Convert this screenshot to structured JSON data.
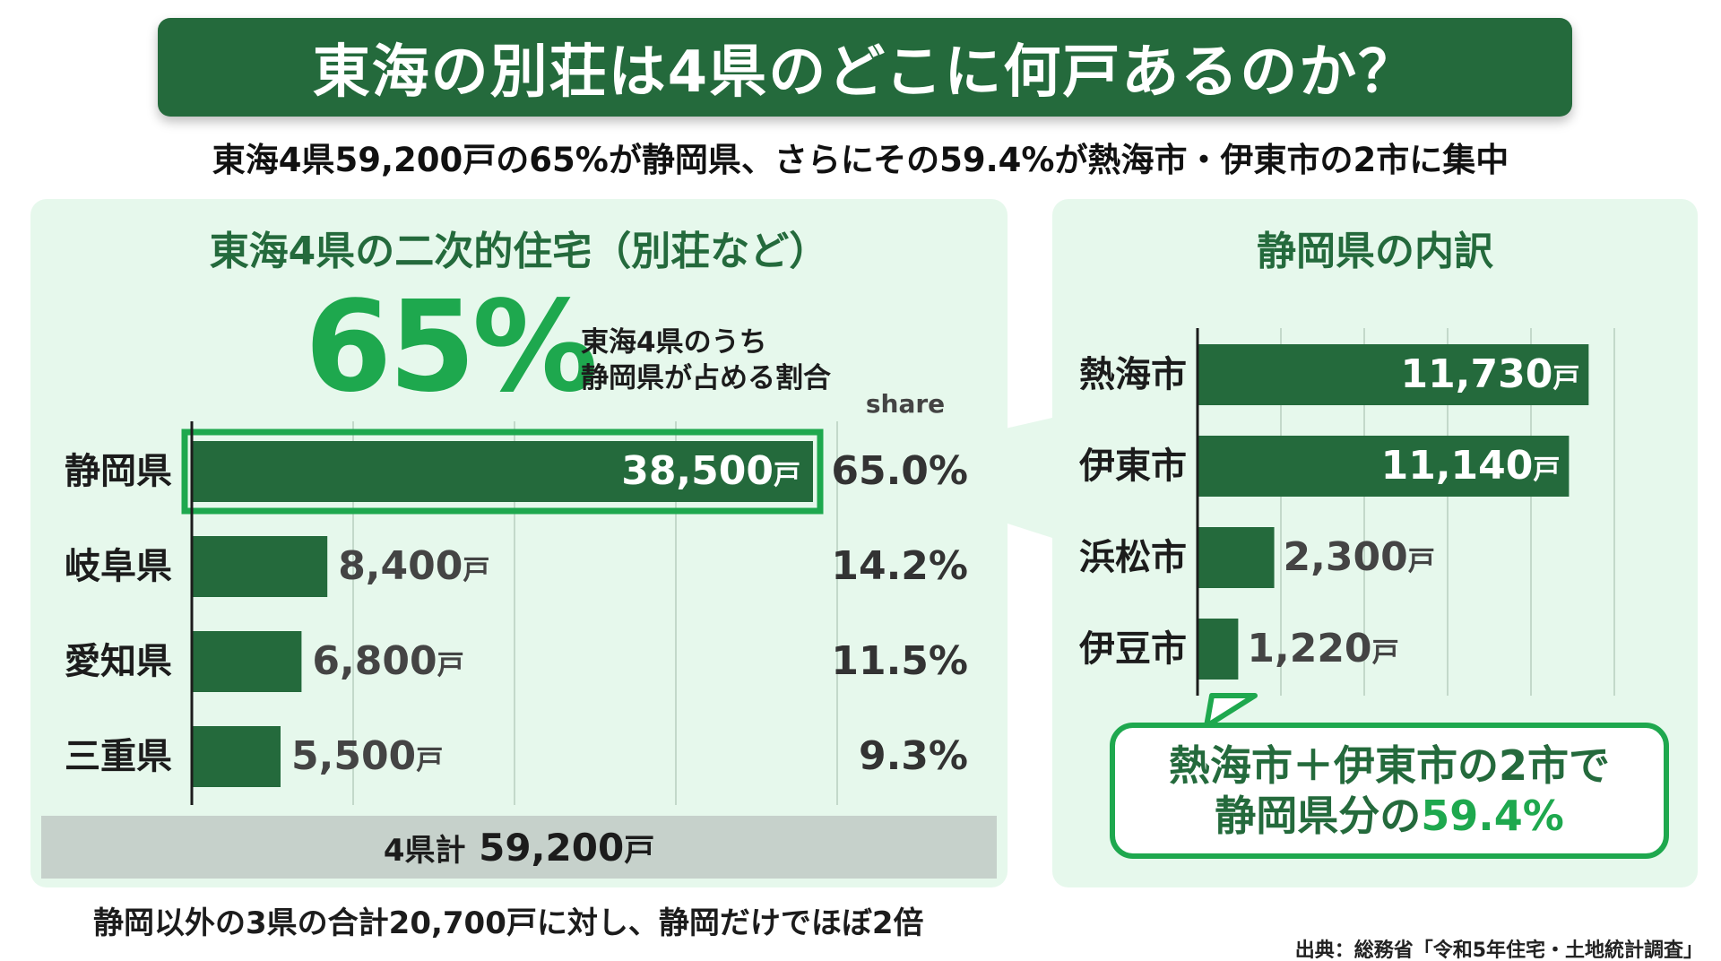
{
  "title": "東海の別荘は4県のどこに何戸あるのか？",
  "subtitle": "東海4県59,200戸の65%が静岡県、さらにその59.4%が熱海市・伊東市の2市に集中",
  "left_panel": {
    "title": "東海4県の二次的住宅（別荘など）",
    "headline_value": "65%",
    "headline_note_1": "東海4県のうち",
    "headline_note_2": "静岡県が占める割合",
    "share_header": "share",
    "total_label": "4県計",
    "total_value": "59,200",
    "total_unit": "戸",
    "note": "静岡以外の3県の合計20,700戸に対し、静岡だけでほぼ2倍"
  },
  "right_panel": {
    "title": "静岡県の内訳",
    "callout_line1": "熱海市＋伊東市の2市で",
    "callout_line2_prefix": "静岡県分の",
    "callout_line2_value": "59.4%"
  },
  "source": "出典：総務省「令和5年住宅・土地統計調査」",
  "colors": {
    "dark_green": "#246a3c",
    "accent_green": "#1ea84e",
    "panel_bg": "#e6f8ec",
    "total_bg": "#c6d1cb"
  },
  "chart_data": [
    {
      "type": "bar",
      "orientation": "horizontal",
      "title": "東海4県の二次的住宅（別荘など）",
      "categories": [
        "静岡県",
        "岐阜県",
        "愛知県",
        "三重県"
      ],
      "values": [
        38500,
        8400,
        6800,
        5500
      ],
      "value_labels": [
        "38,500",
        "8,400",
        "6,800",
        "5,500"
      ],
      "unit": "戸",
      "share_labels": [
        "65.0%",
        "14.2%",
        "11.5%",
        "9.3%"
      ],
      "highlight": "静岡県",
      "xlim": [
        0,
        40000
      ],
      "grid": true
    },
    {
      "type": "bar",
      "orientation": "horizontal",
      "title": "静岡県の内訳",
      "categories": [
        "熱海市",
        "伊東市",
        "浜松市",
        "伊豆市"
      ],
      "values": [
        11730,
        11140,
        2300,
        1220
      ],
      "value_labels": [
        "11,730",
        "11,140",
        "2,300",
        "1,220"
      ],
      "unit": "戸",
      "xlim": [
        0,
        12500
      ],
      "grid": true
    }
  ]
}
